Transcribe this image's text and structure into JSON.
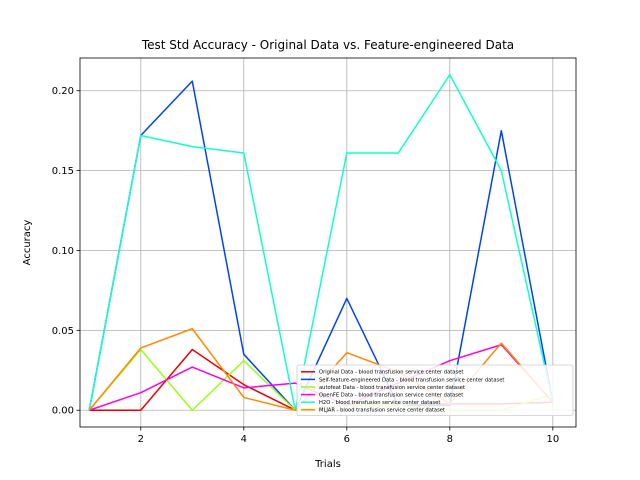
{
  "chart_data": {
    "type": "line",
    "title": "Test Std Accuracy - Original Data vs. Feature-engineered Data",
    "xlabel": "Trials",
    "ylabel": "Accuracy",
    "xlim": [
      0.82,
      10.45
    ],
    "ylim": [
      -0.0105,
      0.2205
    ],
    "xticks": [
      2,
      4,
      6,
      8,
      10
    ],
    "yticks": [
      0.0,
      0.05,
      0.1,
      0.15,
      0.2
    ],
    "ytick_labels": [
      "0.00",
      "0.05",
      "0.10",
      "0.15",
      "0.20"
    ],
    "grid": true,
    "legend_position": "lower-right",
    "x": [
      1,
      2,
      3,
      4,
      5,
      6,
      7,
      8,
      9,
      10
    ],
    "series": [
      {
        "name": "Original Data - blood transfusion service center dataset",
        "color": "#ee0000",
        "values": [
          0.0,
          0.0,
          0.038,
          0.016,
          0.0,
          0.003,
          0.003,
          0.004,
          0.004,
          0.005
        ]
      },
      {
        "name": "Self-feature-engineered Data - blood transfusion service center dataset",
        "color": "#0044ee",
        "values": [
          0.0,
          0.172,
          0.206,
          0.035,
          0.0,
          0.07,
          0.003,
          0.003,
          0.175,
          0.005
        ]
      },
      {
        "name": "autofeat Data - blood transfusion service center dataset",
        "color": "#99ff11",
        "values": [
          0.0,
          0.038,
          0.0,
          0.031,
          0.0,
          0.003,
          0.003,
          0.0,
          0.0,
          0.01
        ]
      },
      {
        "name": "OpenFE Data - blood transfusion service center dataset",
        "color": "#ff00dd",
        "values": [
          0.0,
          0.011,
          0.027,
          0.014,
          0.017,
          0.003,
          0.017,
          0.031,
          0.041,
          0.005
        ]
      },
      {
        "name": "H2O - blood transfusion service center dataset",
        "color": "#11ffcc",
        "values": [
          0.0,
          0.172,
          0.165,
          0.161,
          0.0,
          0.161,
          0.161,
          0.21,
          0.15,
          0.005
        ]
      },
      {
        "name": "MLJAR - blood transfusion service center dataset",
        "color": "#ff8800",
        "values": [
          0.0,
          0.039,
          0.051,
          0.008,
          0.0,
          0.036,
          0.024,
          0.004,
          0.042,
          0.005
        ]
      }
    ]
  }
}
